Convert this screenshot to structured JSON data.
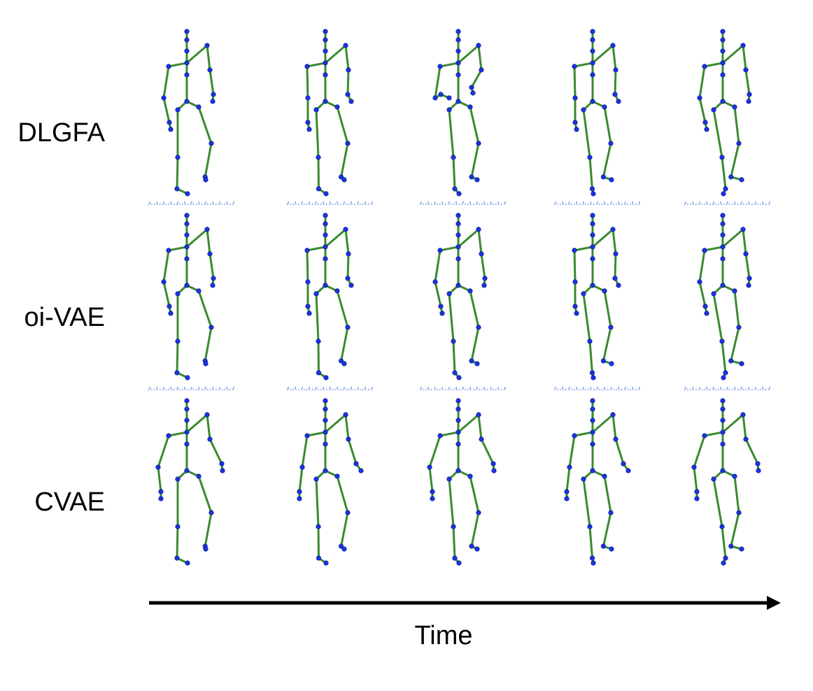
{
  "rows": [
    {
      "label": "DLGFA"
    },
    {
      "label": "oi-VAE"
    },
    {
      "label": "CVAE"
    }
  ],
  "frames_per_row": 5,
  "time_axis": {
    "label": "Time"
  },
  "colors": {
    "bone": "#3a8a2f",
    "joint": "#1a35e0",
    "joint_edge": "#0a1f9a",
    "ground": "#3d6fd1",
    "arrow": "#000000",
    "text": "#000000"
  },
  "icons": {
    "time_arrow": "right-arrow-icon",
    "joint": "dot",
    "ground_marker": "dotted-line"
  }
}
